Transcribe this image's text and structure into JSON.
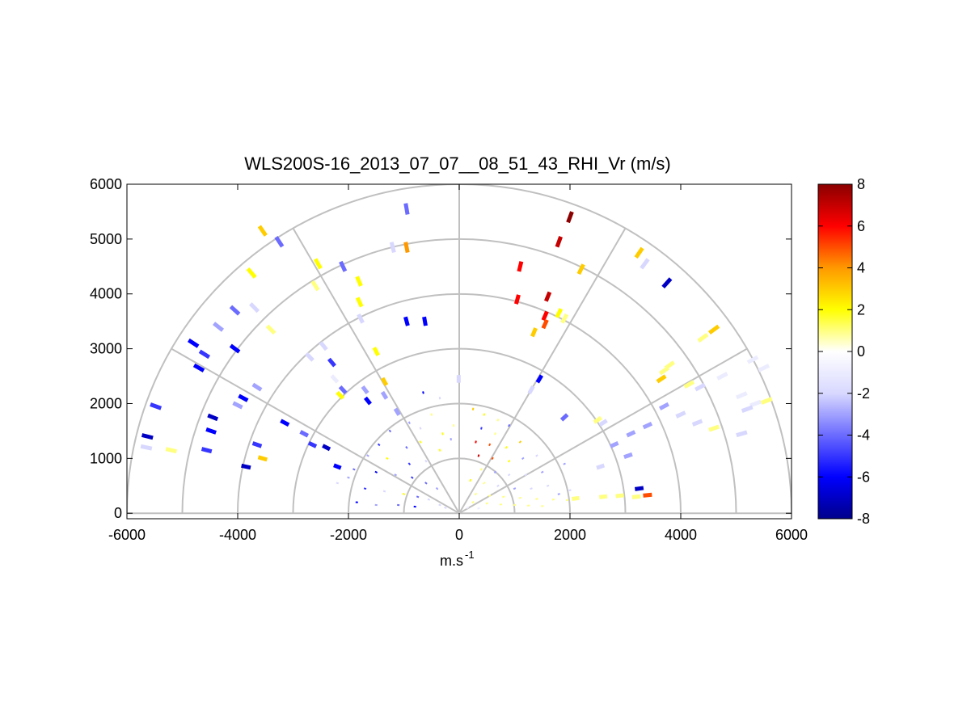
{
  "chart_data": {
    "type": "scatter",
    "title": "WLS200S-16_2013_07_07__08_51_43_RHI_Vr (m/s)",
    "xlabel": "m.s",
    "xlabel_superscript": "-1",
    "ylabel": "",
    "xlim": [
      -6000,
      6000
    ],
    "ylim": [
      -100,
      6000
    ],
    "x_ticks": [
      "-6000",
      "-4000",
      "-2000",
      "0",
      "2000",
      "4000",
      "6000"
    ],
    "y_ticks": [
      "0",
      "1000",
      "2000",
      "3000",
      "4000",
      "5000",
      "6000"
    ],
    "polar_grid": {
      "ring_ranges": [
        1000,
        2000,
        3000,
        4000,
        5000,
        6000
      ],
      "spoke_angles_deg": [
        0,
        30,
        60,
        90,
        120,
        150,
        180
      ]
    },
    "colorbar": {
      "range": [
        -8,
        8
      ],
      "tick_labels": [
        "8",
        "6",
        "4",
        "2",
        "0",
        "-2",
        "-4",
        "-6",
        "-8"
      ],
      "stops": [
        "#00008b",
        "#0000ff",
        "#6b6bff",
        "#d8d8ff",
        "#ffffff",
        "#ffff00",
        "#ff9900",
        "#ff0000",
        "#8b0000"
      ]
    },
    "series": [
      {
        "points": [
          [
            -5650,
            1200,
            -2
          ],
          [
            -5630,
            1400,
            -7
          ],
          [
            -5480,
            1950,
            -5
          ],
          [
            -4560,
            1150,
            -5
          ],
          [
            -4480,
            1500,
            -6
          ],
          [
            -4450,
            1750,
            -7
          ],
          [
            -4700,
            2650,
            -6
          ],
          [
            -4600,
            2900,
            -5
          ],
          [
            -4800,
            3100,
            -6
          ],
          [
            -4350,
            3400,
            -3
          ],
          [
            -4050,
            3000,
            -6
          ],
          [
            -4050,
            3700,
            -4
          ],
          [
            -3700,
            3750,
            -2
          ],
          [
            -3750,
            4380,
            2
          ],
          [
            -3400,
            3350,
            1
          ],
          [
            -3550,
            5150,
            3
          ],
          [
            -3250,
            4950,
            -4
          ],
          [
            -2550,
            4550,
            2
          ],
          [
            -2600,
            4150,
            1
          ],
          [
            -2100,
            4500,
            -4
          ],
          [
            -1810,
            4230,
            2
          ],
          [
            -1800,
            3850,
            2
          ],
          [
            -1780,
            3550,
            -2
          ],
          [
            -1500,
            2950,
            2
          ],
          [
            -1350,
            2400,
            3
          ],
          [
            -1350,
            2150,
            -3
          ],
          [
            -1120,
            1850,
            -3
          ],
          [
            -950,
            5550,
            -4
          ],
          [
            -1200,
            4850,
            -2
          ],
          [
            -950,
            4850,
            4
          ],
          [
            -950,
            3500,
            -6
          ],
          [
            -620,
            3500,
            -6
          ],
          [
            -10,
            2450,
            -2
          ],
          [
            -2700,
            2850,
            -2
          ],
          [
            -2450,
            3050,
            -2
          ],
          [
            -2300,
            2750,
            -5
          ],
          [
            -2250,
            2450,
            -1
          ],
          [
            -2100,
            2250,
            -4
          ],
          [
            -2150,
            2150,
            2
          ],
          [
            -1700,
            2250,
            -3
          ],
          [
            -1650,
            2050,
            -6
          ],
          [
            -3550,
            1000,
            3
          ],
          [
            -3850,
            850,
            -7
          ],
          [
            -3650,
            1250,
            -5
          ],
          [
            -3150,
            1650,
            -6
          ],
          [
            -2800,
            1450,
            -4
          ],
          [
            -2650,
            1250,
            -5
          ],
          [
            -2400,
            1200,
            -7
          ],
          [
            -2200,
            850,
            -6
          ],
          [
            -5200,
            1150,
            1
          ],
          [
            -3900,
            2100,
            -6
          ],
          [
            -3650,
            2300,
            -3
          ],
          [
            -4000,
            1970,
            -3
          ],
          [
            1100,
            4500,
            6
          ],
          [
            1800,
            4950,
            7
          ],
          [
            2000,
            5400,
            8
          ],
          [
            2200,
            4450,
            3
          ],
          [
            1050,
            3900,
            6
          ],
          [
            1600,
            3950,
            7
          ],
          [
            1550,
            3600,
            6
          ],
          [
            1550,
            3450,
            5
          ],
          [
            1350,
            3300,
            3
          ],
          [
            1800,
            3650,
            2
          ],
          [
            1900,
            3550,
            1
          ],
          [
            3250,
            4750,
            3
          ],
          [
            3750,
            4200,
            -7
          ],
          [
            3350,
            4550,
            -2
          ],
          [
            4400,
            3200,
            1
          ],
          [
            4600,
            3350,
            3
          ],
          [
            3700,
            2600,
            1
          ],
          [
            3800,
            2700,
            1
          ],
          [
            3650,
            2450,
            3
          ],
          [
            4150,
            2350,
            1
          ],
          [
            4350,
            2300,
            -2
          ],
          [
            4750,
            2500,
            -1
          ],
          [
            5100,
            2150,
            -1
          ],
          [
            5350,
            2000,
            -1
          ],
          [
            5200,
            1900,
            -2
          ],
          [
            5550,
            2050,
            1
          ],
          [
            5300,
            2800,
            -1
          ],
          [
            5500,
            2650,
            -1
          ],
          [
            4000,
            1800,
            -2
          ],
          [
            4300,
            1650,
            -2
          ],
          [
            4600,
            1550,
            1
          ],
          [
            5100,
            1450,
            -2
          ],
          [
            3400,
            1600,
            -3
          ],
          [
            3700,
            1950,
            -3
          ],
          [
            3100,
            1450,
            -3
          ],
          [
            2600,
            1650,
            -2
          ],
          [
            2800,
            1250,
            -3
          ],
          [
            3050,
            1050,
            -3
          ],
          [
            2550,
            850,
            -2
          ],
          [
            1900,
            1750,
            -4
          ],
          [
            1450,
            2450,
            -6
          ],
          [
            1300,
            2250,
            -2
          ],
          [
            2500,
            1700,
            1
          ],
          [
            3200,
            300,
            1
          ],
          [
            3400,
            330,
            5
          ],
          [
            2900,
            320,
            1
          ],
          [
            2600,
            300,
            1
          ],
          [
            2100,
            270,
            1
          ],
          [
            3250,
            450,
            -7
          ]
        ]
      },
      {
        "points": [
          [
            -650,
            2200,
            -6
          ],
          [
            -350,
            2100,
            -2
          ],
          [
            -900,
            1650,
            -3
          ],
          [
            -1250,
            1500,
            -4
          ],
          [
            -700,
            1550,
            -2
          ],
          [
            -500,
            1800,
            1
          ],
          [
            -300,
            1450,
            2
          ],
          [
            -100,
            1600,
            1
          ],
          [
            -1450,
            1250,
            -5
          ],
          [
            -950,
            1200,
            -4
          ],
          [
            -700,
            1300,
            2
          ],
          [
            -350,
            1150,
            2
          ],
          [
            -150,
            1350,
            -3
          ],
          [
            -1650,
            1050,
            -3
          ],
          [
            -1300,
            1000,
            2
          ],
          [
            -900,
            900,
            -5
          ],
          [
            -600,
            950,
            -2
          ],
          [
            -1900,
            800,
            -4
          ],
          [
            -1500,
            750,
            -6
          ],
          [
            -1150,
            700,
            -3
          ],
          [
            -850,
            650,
            -5
          ],
          [
            -600,
            550,
            -4
          ],
          [
            -400,
            450,
            -3
          ],
          [
            -1700,
            450,
            -5
          ],
          [
            -1350,
            400,
            -2
          ],
          [
            -1000,
            350,
            2
          ],
          [
            -750,
            300,
            -4
          ],
          [
            -550,
            250,
            -2
          ],
          [
            -350,
            150,
            -2
          ],
          [
            -1850,
            200,
            -6
          ],
          [
            -1500,
            150,
            -3
          ],
          [
            -1100,
            150,
            -4
          ],
          [
            -800,
            120,
            -6
          ],
          [
            -250,
            100,
            -2
          ],
          [
            250,
            1900,
            3
          ],
          [
            450,
            1800,
            2
          ],
          [
            700,
            1700,
            1
          ],
          [
            400,
            1550,
            -5
          ],
          [
            650,
            1450,
            1
          ],
          [
            900,
            1600,
            -4
          ],
          [
            300,
            1300,
            6
          ],
          [
            550,
            1250,
            5
          ],
          [
            850,
            1200,
            2
          ],
          [
            1100,
            1300,
            3
          ],
          [
            350,
            1050,
            7
          ],
          [
            600,
            1000,
            5
          ],
          [
            900,
            950,
            2
          ],
          [
            1150,
            1000,
            -3
          ],
          [
            1400,
            1050,
            -2
          ],
          [
            400,
            800,
            1
          ],
          [
            650,
            750,
            -3
          ],
          [
            900,
            700,
            -2
          ],
          [
            1200,
            700,
            -2
          ],
          [
            1500,
            750,
            -3
          ],
          [
            200,
            600,
            2
          ],
          [
            450,
            550,
            1
          ],
          [
            700,
            500,
            -2
          ],
          [
            1000,
            450,
            -3
          ],
          [
            1300,
            450,
            -2
          ],
          [
            1600,
            500,
            -2
          ],
          [
            300,
            350,
            1
          ],
          [
            550,
            320,
            1
          ],
          [
            800,
            300,
            1
          ],
          [
            1100,
            280,
            1
          ],
          [
            1400,
            260,
            1
          ],
          [
            1700,
            250,
            1
          ],
          [
            1950,
            240,
            1
          ],
          [
            250,
            200,
            1
          ],
          [
            500,
            180,
            1
          ],
          [
            750,
            160,
            1
          ],
          [
            1000,
            150,
            1
          ],
          [
            1250,
            140,
            1
          ],
          [
            1500,
            130,
            1
          ],
          [
            150,
            100,
            -1
          ],
          [
            350,
            90,
            -1
          ],
          [
            1800,
            350,
            -3
          ],
          [
            2000,
            420,
            -2
          ],
          [
            -2000,
            650,
            -3
          ],
          [
            -2200,
            550,
            -2
          ],
          [
            1900,
            900,
            -3
          ]
        ]
      }
    ]
  }
}
